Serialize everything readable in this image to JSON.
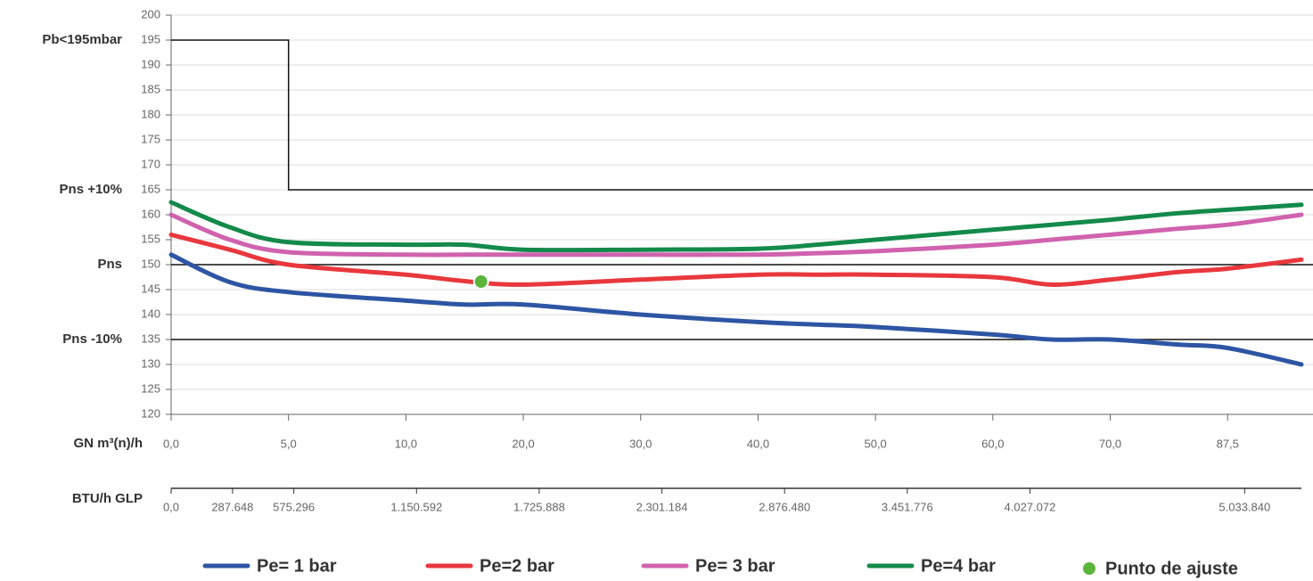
{
  "chart_data": {
    "type": "line",
    "x_label": "GN m³(n)/h",
    "x2_label": "BTU/h GLP",
    "x": [
      0,
      2.5,
      5,
      10,
      15,
      20,
      30,
      40,
      45,
      50,
      60,
      65,
      70,
      80,
      87.5,
      98.5
    ],
    "series": [
      {
        "name": "Pe= 1 bar",
        "color": "#2d55a3",
        "values": [
          152,
          146.5,
          144.5,
          142.8,
          142,
          142,
          140,
          138.5,
          138,
          137.5,
          136,
          135,
          135,
          134,
          133.3,
          130
        ]
      },
      {
        "name": "Pe=2 bar",
        "color": "#e8383d",
        "values": [
          156,
          153,
          150,
          148,
          146.7,
          146,
          147,
          148,
          148,
          148,
          147.5,
          146,
          147,
          148.5,
          149.2,
          151
        ]
      },
      {
        "name": "Pe= 3 bar",
        "color": "#d062ae",
        "values": [
          160,
          155,
          152.5,
          152,
          152,
          152,
          152,
          152,
          152.3,
          152.7,
          154,
          155,
          156,
          157.2,
          158,
          160
        ]
      },
      {
        "name": "Pe=4 bar",
        "color": "#138a4a",
        "values": [
          162.5,
          157.5,
          154.5,
          154,
          154,
          153,
          153,
          153.2,
          154,
          155,
          157,
          158,
          159,
          160.3,
          161,
          162
        ]
      }
    ],
    "point": {
      "name": "Punto de ajuste",
      "color": "#5bb53c",
      "x": 16.4,
      "y": 146.6
    },
    "limit_line": {
      "x": [
        0,
        5,
        5,
        98.5
      ],
      "values": [
        195,
        195,
        165,
        165
      ]
    },
    "reference_lines": [
      150,
      135
    ],
    "y_annotations": [
      {
        "value": 195,
        "label": "Pb<195mbar"
      },
      {
        "value": 165,
        "label": "Pns +10%"
      },
      {
        "value": 150,
        "label": "Pns"
      },
      {
        "value": 135,
        "label": "Pns -10%"
      }
    ],
    "ylim": [
      120,
      200
    ],
    "yticks": [
      120,
      125,
      130,
      135,
      140,
      145,
      150,
      155,
      160,
      165,
      170,
      175,
      180,
      185,
      190,
      195,
      200
    ],
    "xlim": [
      0,
      98.5
    ],
    "xticks": [
      {
        "value": 0,
        "label": "0,0"
      },
      {
        "value": 5,
        "label": "5,0"
      },
      {
        "value": 10,
        "label": "10,0"
      },
      {
        "value": 20,
        "label": "20,0"
      },
      {
        "value": 30,
        "label": "30,0"
      },
      {
        "value": 40,
        "label": "40,0"
      },
      {
        "value": 50,
        "label": "50,0"
      },
      {
        "value": 60,
        "label": "60,0"
      },
      {
        "value": 70,
        "label": "70,0"
      },
      {
        "value": 87.5,
        "label": "87,5"
      }
    ],
    "x2lim": [
      0,
      5300000
    ],
    "x2ticks": [
      {
        "value": 0,
        "label": "0,0"
      },
      {
        "value": 287648,
        "label": "287.648"
      },
      {
        "value": 575296,
        "label": "575.296"
      },
      {
        "value": 1150592,
        "label": "1.150.592"
      },
      {
        "value": 1725888,
        "label": "1.725.888"
      },
      {
        "value": 2301184,
        "label": "2.301.184"
      },
      {
        "value": 2876480,
        "label": "2.876.480"
      },
      {
        "value": 3451776,
        "label": "3.451.776"
      },
      {
        "value": 4027072,
        "label": "4.027.072"
      },
      {
        "value": 5033840,
        "label": "5.033.840"
      }
    ],
    "grid": true
  }
}
